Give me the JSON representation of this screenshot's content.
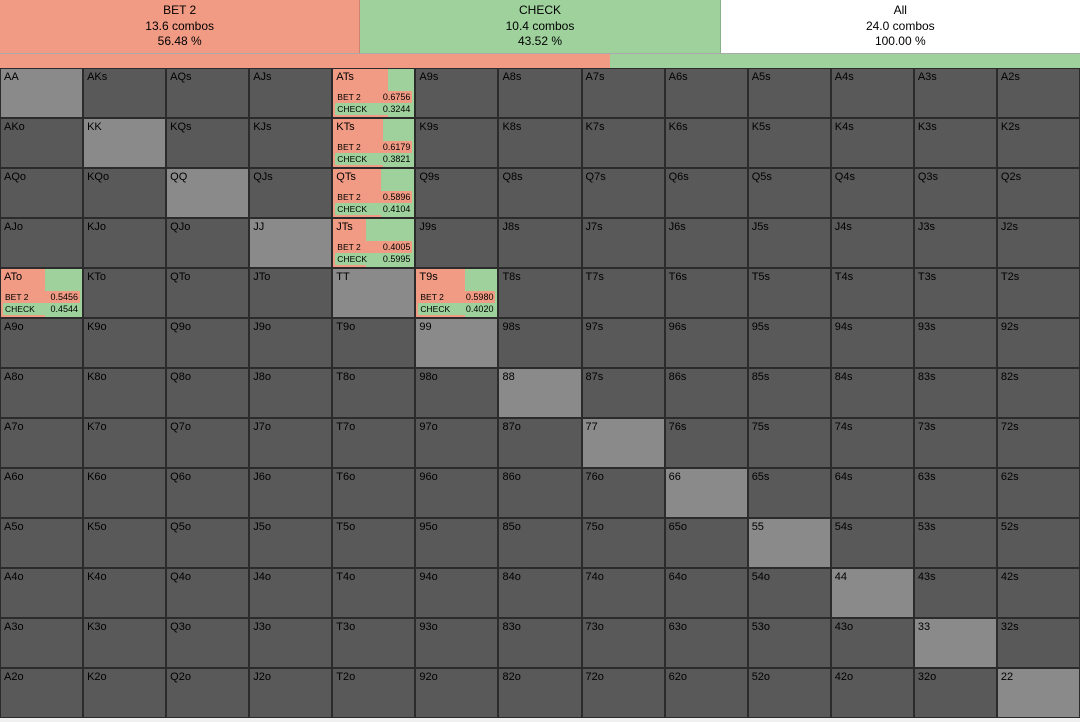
{
  "colors": {
    "bet2": "#f29b84",
    "check": "#9ed19c",
    "all_bg": "#ffffff",
    "cell_dark": "#595959",
    "cell_pair": "#8a8a8a",
    "grid_border": "#2b2b2b"
  },
  "header": {
    "items": [
      {
        "name": "BET 2",
        "combos": "13.6 combos",
        "pct": "56.48 %",
        "bg_key": "bet2"
      },
      {
        "name": "CHECK",
        "combos": "10.4 combos",
        "pct": "43.52 %",
        "bg_key": "check"
      },
      {
        "name": "All",
        "combos": "24.0 combos",
        "pct": "100.00 %",
        "bg_key": "all_bg"
      }
    ]
  },
  "freq_bar": {
    "segments": [
      {
        "color_key": "bet2",
        "pct": 56.48
      },
      {
        "color_key": "check",
        "pct": 43.52
      }
    ]
  },
  "ranks": [
    "A",
    "K",
    "Q",
    "J",
    "T",
    "9",
    "8",
    "7",
    "6",
    "5",
    "4",
    "3",
    "2"
  ],
  "action_cells": {
    "ATs": {
      "bet2": 0.6756,
      "check": 0.3244
    },
    "KTs": {
      "bet2": 0.6179,
      "check": 0.3821
    },
    "QTs": {
      "bet2": 0.5896,
      "check": 0.4104
    },
    "JTs": {
      "bet2": 0.4005,
      "check": 0.5995
    },
    "ATo": {
      "bet2": 0.5456,
      "check": 0.4544
    },
    "T9s": {
      "bet2": 0.598,
      "check": 0.402
    }
  },
  "pair_highlight": [
    "AA",
    "KK",
    "QQ",
    "JJ",
    "TT",
    "99",
    "88",
    "77",
    "66",
    "55",
    "44",
    "33",
    "22"
  ],
  "action_labels": {
    "bet2": "BET 2",
    "check": "CHECK"
  }
}
